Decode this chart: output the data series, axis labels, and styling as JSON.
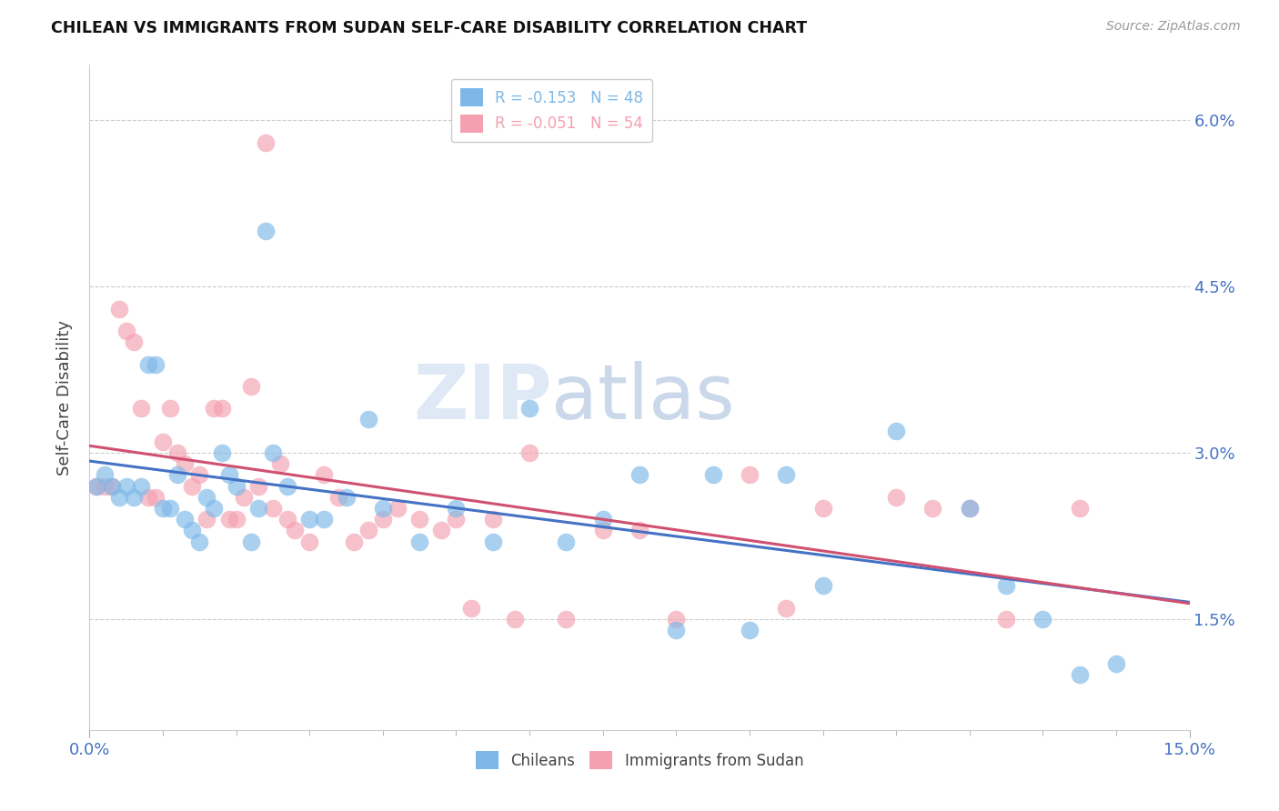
{
  "title": "CHILEAN VS IMMIGRANTS FROM SUDAN SELF-CARE DISABILITY CORRELATION CHART",
  "source": "Source: ZipAtlas.com",
  "ylabel": "Self-Care Disability",
  "xlim": [
    0.0,
    0.15
  ],
  "ylim": [
    0.005,
    0.065
  ],
  "yticks": [
    0.015,
    0.03,
    0.045,
    0.06
  ],
  "ytick_labels": [
    "1.5%",
    "3.0%",
    "4.5%",
    "6.0%"
  ],
  "xtick_labels_shown": [
    "0.0%",
    "15.0%"
  ],
  "xtick_positions_shown": [
    0.0,
    0.15
  ],
  "chilean_color": "#7db8e8",
  "sudan_color": "#f4a0b0",
  "trend_chilean_color": "#4472c4",
  "trend_sudan_color": "#d05070",
  "watermark_text": "ZIPatlas",
  "legend_label_1": "R = -0.153   N = 48",
  "legend_label_2": "R = -0.051   N = 54",
  "legend_color_1": "#7db8e8",
  "legend_color_2": "#f4a0b0",
  "bottom_label_1": "Chileans",
  "bottom_label_2": "Immigrants from Sudan",
  "chilean_x": [
    0.001,
    0.002,
    0.003,
    0.004,
    0.005,
    0.006,
    0.007,
    0.008,
    0.009,
    0.01,
    0.011,
    0.012,
    0.013,
    0.014,
    0.015,
    0.016,
    0.017,
    0.018,
    0.019,
    0.02,
    0.022,
    0.023,
    0.024,
    0.025,
    0.027,
    0.03,
    0.032,
    0.035,
    0.038,
    0.04,
    0.045,
    0.05,
    0.055,
    0.06,
    0.065,
    0.07,
    0.075,
    0.08,
    0.085,
    0.09,
    0.095,
    0.1,
    0.11,
    0.12,
    0.125,
    0.13,
    0.135,
    0.14
  ],
  "chilean_y": [
    0.027,
    0.028,
    0.027,
    0.026,
    0.027,
    0.026,
    0.027,
    0.038,
    0.038,
    0.025,
    0.025,
    0.028,
    0.024,
    0.023,
    0.022,
    0.026,
    0.025,
    0.03,
    0.028,
    0.027,
    0.022,
    0.025,
    0.05,
    0.03,
    0.027,
    0.024,
    0.024,
    0.026,
    0.033,
    0.025,
    0.022,
    0.025,
    0.022,
    0.034,
    0.022,
    0.024,
    0.028,
    0.014,
    0.028,
    0.014,
    0.028,
    0.018,
    0.032,
    0.025,
    0.018,
    0.015,
    0.01,
    0.011
  ],
  "sudan_x": [
    0.001,
    0.002,
    0.003,
    0.004,
    0.005,
    0.006,
    0.007,
    0.008,
    0.009,
    0.01,
    0.011,
    0.012,
    0.013,
    0.014,
    0.015,
    0.016,
    0.017,
    0.018,
    0.019,
    0.02,
    0.021,
    0.022,
    0.023,
    0.024,
    0.025,
    0.026,
    0.027,
    0.028,
    0.03,
    0.032,
    0.034,
    0.036,
    0.038,
    0.04,
    0.042,
    0.045,
    0.048,
    0.05,
    0.052,
    0.055,
    0.058,
    0.06,
    0.065,
    0.07,
    0.075,
    0.08,
    0.09,
    0.095,
    0.1,
    0.11,
    0.115,
    0.12,
    0.125,
    0.135
  ],
  "sudan_y": [
    0.027,
    0.027,
    0.027,
    0.043,
    0.041,
    0.04,
    0.034,
    0.026,
    0.026,
    0.031,
    0.034,
    0.03,
    0.029,
    0.027,
    0.028,
    0.024,
    0.034,
    0.034,
    0.024,
    0.024,
    0.026,
    0.036,
    0.027,
    0.058,
    0.025,
    0.029,
    0.024,
    0.023,
    0.022,
    0.028,
    0.026,
    0.022,
    0.023,
    0.024,
    0.025,
    0.024,
    0.023,
    0.024,
    0.016,
    0.024,
    0.015,
    0.03,
    0.015,
    0.023,
    0.023,
    0.015,
    0.028,
    0.016,
    0.025,
    0.026,
    0.025,
    0.025,
    0.015,
    0.025
  ]
}
